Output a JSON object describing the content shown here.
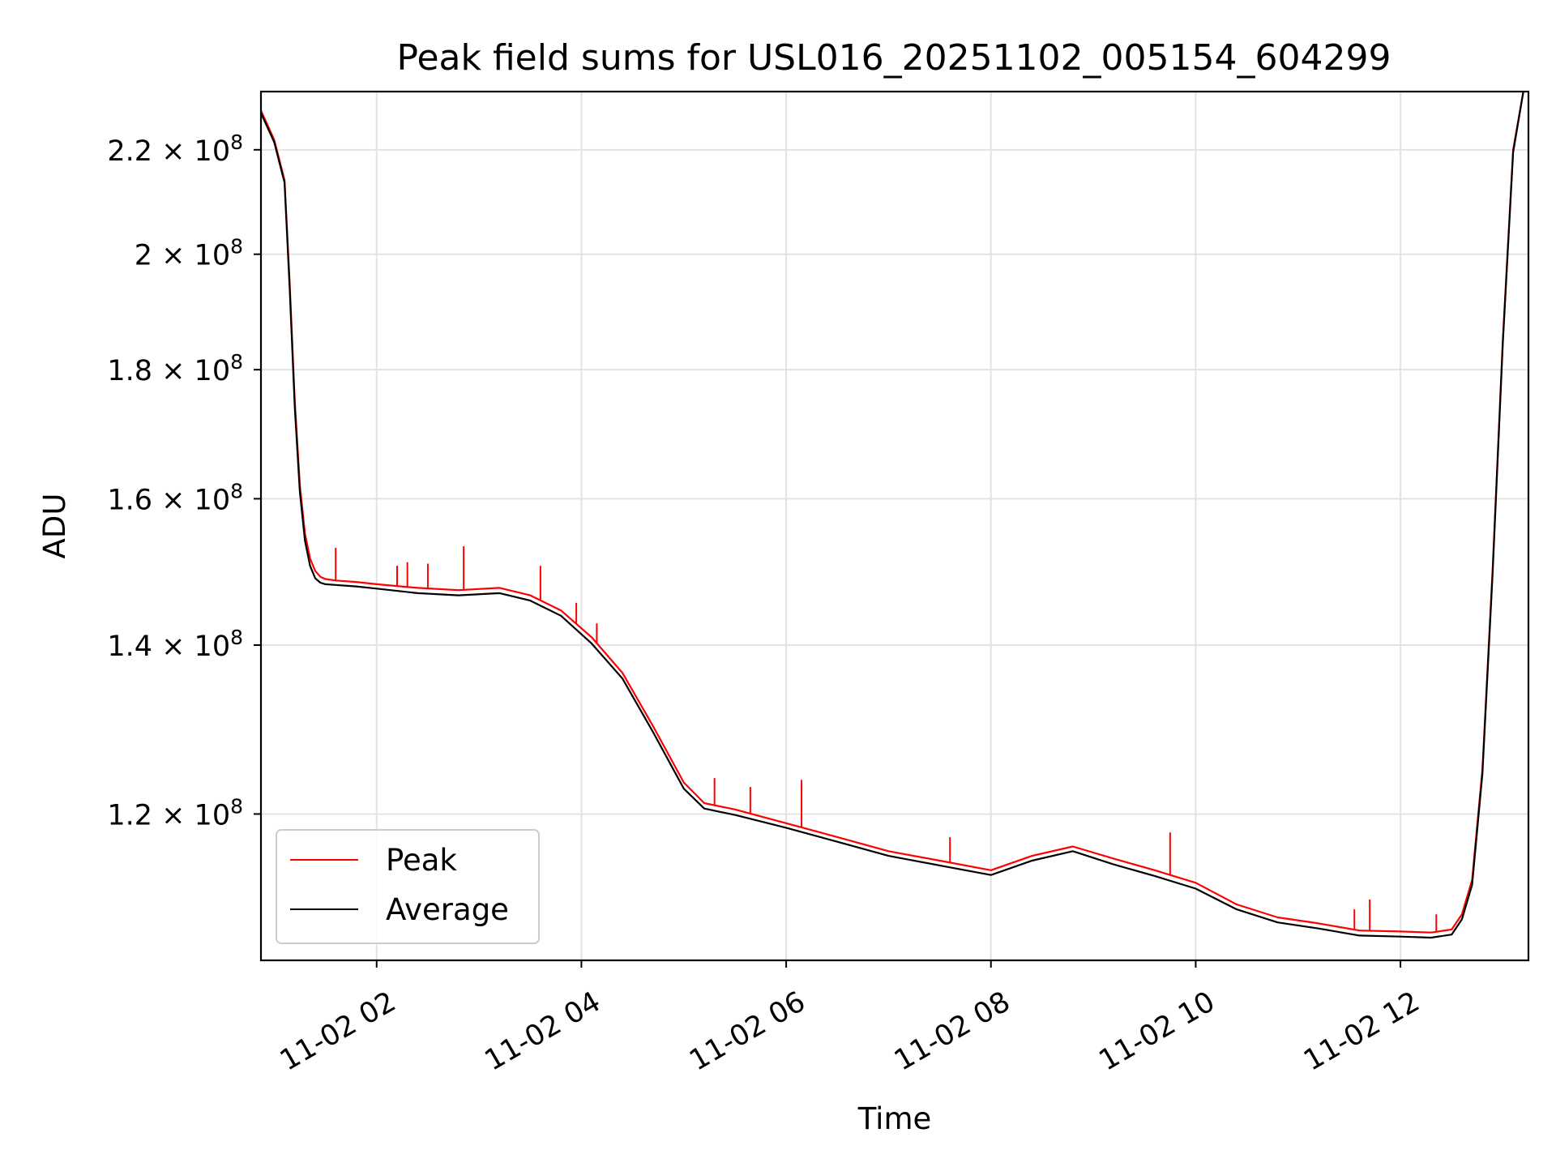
{
  "chart_data": {
    "type": "line",
    "title": "Peak field sums for USL016_20251102_005154_604299",
    "xlabel": "Time",
    "ylabel": "ADU",
    "yscale": "log",
    "grid": true,
    "legend_position": "lower-left",
    "xlim": [
      0.87,
      13.25
    ],
    "ylim": [
      105000000,
      232000000
    ],
    "x_unit": "hours since 2025-11-02 00:00",
    "x_ticks": [
      {
        "value": 2,
        "label": "11-02 02"
      },
      {
        "value": 4,
        "label": "11-02 04"
      },
      {
        "value": 6,
        "label": "11-02 06"
      },
      {
        "value": 8,
        "label": "11-02 08"
      },
      {
        "value": 10,
        "label": "11-02 10"
      },
      {
        "value": 12,
        "label": "11-02 12"
      }
    ],
    "y_ticks": [
      {
        "value": 120000000,
        "mantissa": "1.2",
        "base": "10",
        "exp": "8"
      },
      {
        "value": 140000000,
        "mantissa": "1.4",
        "base": "10",
        "exp": "8"
      },
      {
        "value": 160000000,
        "mantissa": "1.6",
        "base": "10",
        "exp": "8"
      },
      {
        "value": 180000000,
        "mantissa": "1.8",
        "base": "10",
        "exp": "8"
      },
      {
        "value": 200000000,
        "mantissa": "2",
        "base": "10",
        "exp": "8"
      },
      {
        "value": 220000000,
        "mantissa": "2.2",
        "base": "10",
        "exp": "8"
      }
    ],
    "series": [
      {
        "name": "Peak",
        "color": "#ff0000",
        "x": [
          0.87,
          1.0,
          1.1,
          1.15,
          1.2,
          1.25,
          1.3,
          1.35,
          1.4,
          1.45,
          1.5,
          1.6,
          1.8,
          2.0,
          2.4,
          2.8,
          3.2,
          3.5,
          3.8,
          4.1,
          4.4,
          4.7,
          5.0,
          5.2,
          5.5,
          6.0,
          6.5,
          7.0,
          7.5,
          8.0,
          8.4,
          8.8,
          9.2,
          9.6,
          10.0,
          10.4,
          10.8,
          11.2,
          11.6,
          12.0,
          12.3,
          12.5,
          12.6,
          12.7,
          12.8,
          12.9,
          13.0,
          13.1,
          13.2
        ],
        "y": [
          228000000,
          222000000,
          214000000,
          195000000,
          175000000,
          162000000,
          155000000,
          151500000,
          149800000,
          149000000,
          148700000,
          148500000,
          148300000,
          148000000,
          147500000,
          147200000,
          147500000,
          146500000,
          144500000,
          141000000,
          136500000,
          130000000,
          123500000,
          121200000,
          120500000,
          119000000,
          117500000,
          116000000,
          115000000,
          114000000,
          115500000,
          116500000,
          115200000,
          114000000,
          112700000,
          110500000,
          109200000,
          108600000,
          107900000,
          107800000,
          107700000,
          108000000,
          109500000,
          113000000,
          125000000,
          150000000,
          185000000,
          220000000,
          232000000
        ],
        "spikes": [
          {
            "x": 1.6,
            "y": 153000000
          },
          {
            "x": 2.2,
            "y": 150500000
          },
          {
            "x": 2.3,
            "y": 151000000
          },
          {
            "x": 2.5,
            "y": 150800000
          },
          {
            "x": 2.85,
            "y": 153200000
          },
          {
            "x": 3.6,
            "y": 150500000
          },
          {
            "x": 3.95,
            "y": 145500000
          },
          {
            "x": 4.15,
            "y": 142800000
          },
          {
            "x": 5.3,
            "y": 124000000
          },
          {
            "x": 5.65,
            "y": 123000000
          },
          {
            "x": 6.15,
            "y": 123800000
          },
          {
            "x": 7.6,
            "y": 117500000
          },
          {
            "x": 9.75,
            "y": 118000000
          },
          {
            "x": 11.55,
            "y": 110000000
          },
          {
            "x": 11.7,
            "y": 111000000
          },
          {
            "x": 12.35,
            "y": 109500000
          }
        ]
      },
      {
        "name": "Average",
        "color": "#000000",
        "x": [
          0.87,
          1.0,
          1.1,
          1.15,
          1.2,
          1.25,
          1.3,
          1.35,
          1.4,
          1.45,
          1.5,
          1.6,
          1.8,
          2.0,
          2.4,
          2.8,
          3.2,
          3.5,
          3.8,
          4.1,
          4.4,
          4.7,
          5.0,
          5.2,
          5.5,
          6.0,
          6.5,
          7.0,
          7.5,
          8.0,
          8.4,
          8.8,
          9.2,
          9.6,
          10.0,
          10.4,
          10.8,
          11.2,
          11.6,
          12.0,
          12.3,
          12.5,
          12.6,
          12.7,
          12.8,
          12.9,
          13.0,
          13.1,
          13.2
        ],
        "y": [
          227500000,
          221500000,
          213500000,
          194000000,
          174000000,
          161000000,
          154000000,
          150500000,
          148800000,
          148200000,
          148000000,
          147900000,
          147700000,
          147400000,
          146800000,
          146500000,
          146800000,
          145800000,
          143800000,
          140200000,
          135800000,
          129300000,
          122800000,
          120600000,
          119900000,
          118500000,
          117000000,
          115500000,
          114500000,
          113500000,
          115000000,
          116000000,
          114600000,
          113400000,
          112100000,
          110000000,
          108700000,
          108100000,
          107400000,
          107300000,
          107200000,
          107500000,
          109000000,
          112500000,
          124500000,
          149500000,
          184500000,
          219500000,
          232000000
        ]
      }
    ]
  }
}
